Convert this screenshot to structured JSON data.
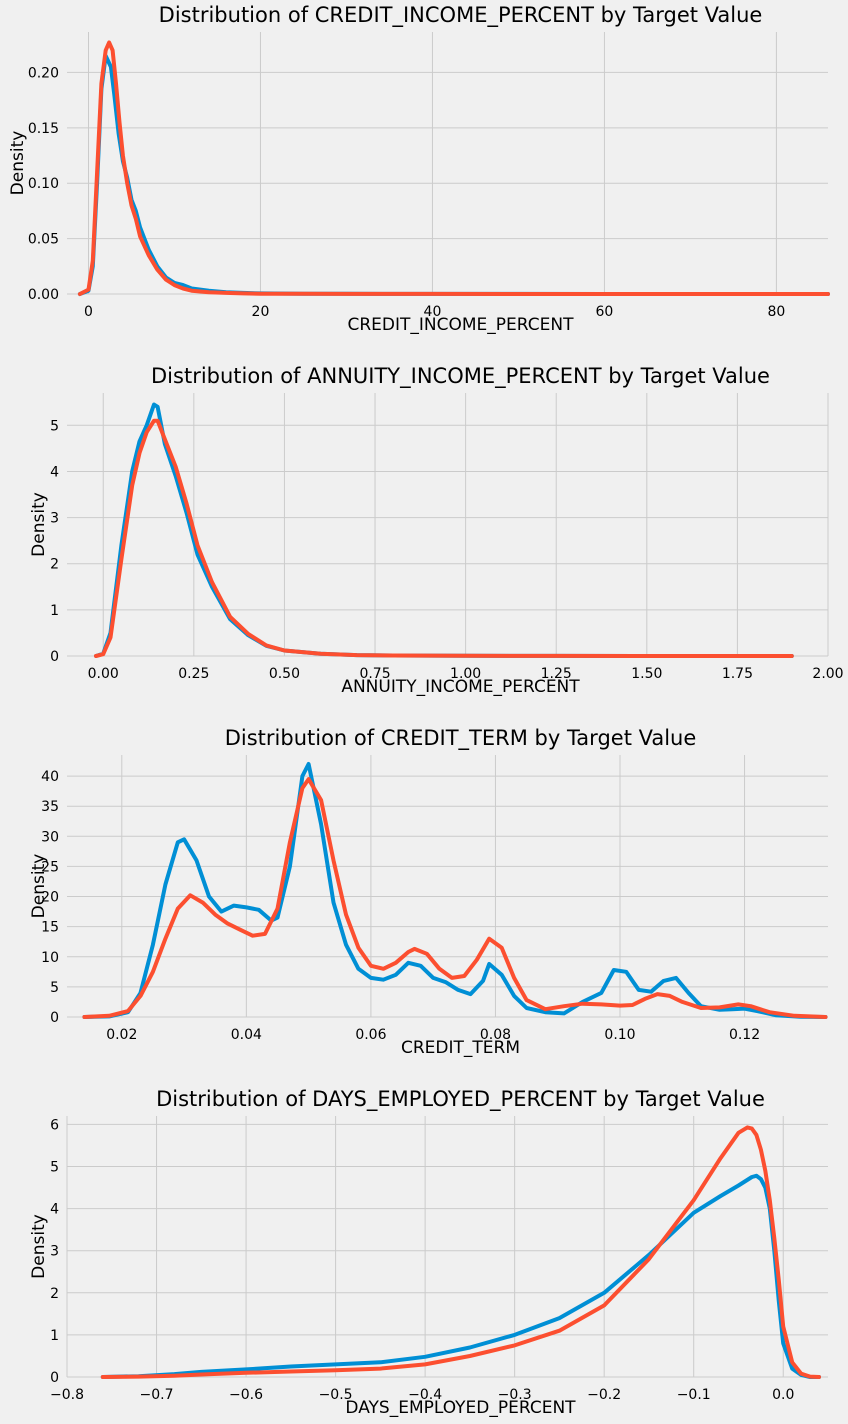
{
  "colors": {
    "background": "#f0f0f0",
    "grid": "#cbcbcb",
    "target_0": "#008fd5",
    "target_1": "#fc4f30"
  },
  "chart_data": [
    {
      "type": "line",
      "title": "Distribution of CREDIT_INCOME_PERCENT by Target Value",
      "xlabel": "CREDIT_INCOME_PERCENT",
      "ylabel": "Density",
      "xlim": [
        -2.5,
        86
      ],
      "ylim": [
        0,
        0.2365
      ],
      "xticks": [
        0,
        20,
        40,
        60,
        80
      ],
      "xtick_labels": [
        "0",
        "20",
        "40",
        "60",
        "80"
      ],
      "yticks": [
        0,
        0.05,
        0.1,
        0.15,
        0.2
      ],
      "ytick_labels": [
        "0.00",
        "0.05",
        "0.10",
        "0.15",
        "0.20"
      ],
      "grid": true,
      "series": [
        {
          "color": "#008fd5",
          "x": [
            -1.0,
            0.0,
            0.5,
            1.0,
            1.5,
            2.0,
            2.3,
            2.6,
            3.0,
            3.5,
            4.0,
            4.5,
            5.0,
            5.5,
            6.0,
            7.0,
            8.0,
            9.0,
            10.0,
            11.0,
            12.0,
            14.0,
            16.0,
            18.0,
            20.0,
            25.0,
            30.0,
            40.0,
            50.0,
            60.0,
            70.0,
            80.0,
            86.0
          ],
          "values": [
            0.0,
            0.003,
            0.025,
            0.1,
            0.185,
            0.215,
            0.21,
            0.205,
            0.18,
            0.145,
            0.12,
            0.105,
            0.085,
            0.075,
            0.06,
            0.04,
            0.025,
            0.015,
            0.01,
            0.008,
            0.005,
            0.003,
            0.0015,
            0.001,
            0.0005,
            0.0003,
            0.0002,
            0.0001,
            0.0001,
            0.0,
            0.0,
            0.0,
            0.0
          ]
        },
        {
          "color": "#fc4f30",
          "x": [
            -1.0,
            0.0,
            0.5,
            1.0,
            1.5,
            2.0,
            2.4,
            2.8,
            3.2,
            3.6,
            4.0,
            4.5,
            5.0,
            5.5,
            6.0,
            7.0,
            8.0,
            9.0,
            10.0,
            11.0,
            12.0,
            14.0,
            16.0,
            18.0,
            20.0,
            25.0,
            30.0,
            40.0,
            50.0,
            60.0,
            70.0,
            80.0,
            86.0
          ],
          "values": [
            0.0,
            0.004,
            0.03,
            0.11,
            0.19,
            0.22,
            0.227,
            0.22,
            0.19,
            0.155,
            0.125,
            0.1,
            0.08,
            0.068,
            0.052,
            0.035,
            0.022,
            0.013,
            0.008,
            0.005,
            0.003,
            0.0015,
            0.001,
            0.0005,
            0.0003,
            0.0002,
            0.0001,
            0.0001,
            0.0,
            0.0,
            0.0,
            0.0,
            0.0
          ]
        }
      ]
    },
    {
      "type": "line",
      "title": "Distribution of ANNUITY_INCOME_PERCENT by Target Value",
      "xlabel": "ANNUITY_INCOME_PERCENT",
      "ylabel": "Density",
      "xlim": [
        -0.1,
        2.0
      ],
      "ylim": [
        0,
        5.7
      ],
      "xticks": [
        0,
        0.25,
        0.5,
        0.75,
        1.0,
        1.25,
        1.5,
        1.75,
        2.0
      ],
      "xtick_labels": [
        "0.00",
        "0.25",
        "0.50",
        "0.75",
        "1.00",
        "1.25",
        "1.50",
        "1.75",
        "2.00"
      ],
      "yticks": [
        0,
        1,
        2,
        3,
        4,
        5
      ],
      "ytick_labels": [
        "0",
        "1",
        "2",
        "3",
        "4",
        "5"
      ],
      "grid": true,
      "series": [
        {
          "color": "#008fd5",
          "x": [
            -0.02,
            0.0,
            0.02,
            0.05,
            0.08,
            0.1,
            0.12,
            0.14,
            0.15,
            0.17,
            0.2,
            0.23,
            0.26,
            0.3,
            0.35,
            0.4,
            0.45,
            0.5,
            0.6,
            0.7,
            0.8,
            1.0,
            1.25,
            1.5,
            1.75,
            1.9
          ],
          "values": [
            0.0,
            0.05,
            0.5,
            2.4,
            4.0,
            4.65,
            5.0,
            5.45,
            5.4,
            4.6,
            3.9,
            3.1,
            2.2,
            1.5,
            0.8,
            0.45,
            0.22,
            0.12,
            0.05,
            0.02,
            0.01,
            0.005,
            0.002,
            0.0,
            0.0,
            0.0
          ]
        },
        {
          "color": "#fc4f30",
          "x": [
            -0.02,
            0.0,
            0.02,
            0.05,
            0.08,
            0.1,
            0.12,
            0.14,
            0.15,
            0.17,
            0.2,
            0.23,
            0.26,
            0.3,
            0.35,
            0.4,
            0.45,
            0.5,
            0.6,
            0.7,
            0.8,
            1.0,
            1.25,
            1.5,
            1.75,
            1.9
          ],
          "values": [
            0.0,
            0.04,
            0.4,
            2.1,
            3.7,
            4.4,
            4.85,
            5.1,
            5.1,
            4.7,
            4.1,
            3.3,
            2.4,
            1.6,
            0.85,
            0.48,
            0.23,
            0.12,
            0.05,
            0.02,
            0.01,
            0.005,
            0.002,
            0.0,
            0.0,
            0.0
          ]
        }
      ]
    },
    {
      "type": "line",
      "title": "Distribution of CREDIT_TERM by Target Value",
      "xlabel": "CREDIT_TERM",
      "ylabel": "Density",
      "xlim": [
        0.0112,
        0.1334
      ],
      "ylim": [
        0,
        43.5
      ],
      "xticks": [
        0.02,
        0.04,
        0.06,
        0.08,
        0.1,
        0.12
      ],
      "xtick_labels": [
        "0.02",
        "0.04",
        "0.06",
        "0.08",
        "0.10",
        "0.12"
      ],
      "yticks": [
        0,
        5,
        10,
        15,
        20,
        25,
        30,
        35,
        40
      ],
      "ytick_labels": [
        "0",
        "5",
        "10",
        "15",
        "20",
        "25",
        "30",
        "35",
        "40"
      ],
      "grid": true,
      "series": [
        {
          "color": "#008fd5",
          "x": [
            0.014,
            0.018,
            0.021,
            0.023,
            0.025,
            0.027,
            0.029,
            0.03,
            0.032,
            0.034,
            0.036,
            0.038,
            0.04,
            0.042,
            0.044,
            0.045,
            0.047,
            0.049,
            0.05,
            0.052,
            0.054,
            0.056,
            0.058,
            0.06,
            0.062,
            0.064,
            0.066,
            0.068,
            0.07,
            0.072,
            0.074,
            0.076,
            0.078,
            0.079,
            0.081,
            0.083,
            0.085,
            0.088,
            0.091,
            0.094,
            0.097,
            0.099,
            0.101,
            0.103,
            0.105,
            0.107,
            0.109,
            0.111,
            0.113,
            0.116,
            0.118,
            0.12,
            0.122,
            0.125,
            0.129,
            0.133
          ],
          "values": [
            0.0,
            0.1,
            0.8,
            4.0,
            12.0,
            22.0,
            29.0,
            29.5,
            26.0,
            20.0,
            17.5,
            18.5,
            18.2,
            17.8,
            16.0,
            16.5,
            25.0,
            40.0,
            42.0,
            32.0,
            19.0,
            12.0,
            8.0,
            6.5,
            6.2,
            7.0,
            9.0,
            8.5,
            6.5,
            5.8,
            4.5,
            3.8,
            6.0,
            8.8,
            7.0,
            3.5,
            1.5,
            0.8,
            0.6,
            2.5,
            4.0,
            7.8,
            7.5,
            4.5,
            4.2,
            6.0,
            6.5,
            4.0,
            1.8,
            1.2,
            1.3,
            1.4,
            1.0,
            0.3,
            0.05,
            0.0
          ]
        },
        {
          "color": "#fc4f30",
          "x": [
            0.014,
            0.018,
            0.021,
            0.023,
            0.025,
            0.027,
            0.029,
            0.031,
            0.033,
            0.035,
            0.037,
            0.039,
            0.041,
            0.043,
            0.045,
            0.047,
            0.049,
            0.05,
            0.052,
            0.054,
            0.056,
            0.058,
            0.06,
            0.062,
            0.064,
            0.066,
            0.067,
            0.069,
            0.071,
            0.073,
            0.075,
            0.077,
            0.079,
            0.081,
            0.083,
            0.085,
            0.088,
            0.091,
            0.094,
            0.097,
            0.1,
            0.102,
            0.104,
            0.106,
            0.108,
            0.11,
            0.113,
            0.116,
            0.119,
            0.121,
            0.124,
            0.128,
            0.133
          ],
          "values": [
            0.0,
            0.2,
            1.0,
            3.5,
            7.5,
            13.0,
            18.0,
            20.2,
            19.0,
            17.0,
            15.5,
            14.5,
            13.5,
            13.8,
            18.0,
            29.0,
            38.0,
            39.5,
            36.0,
            26.0,
            17.0,
            11.5,
            8.5,
            8.0,
            9.0,
            10.8,
            11.3,
            10.5,
            8.0,
            6.5,
            6.8,
            9.5,
            13.0,
            11.5,
            6.5,
            2.8,
            1.3,
            1.8,
            2.2,
            2.1,
            1.9,
            2.0,
            3.0,
            3.8,
            3.5,
            2.5,
            1.5,
            1.6,
            2.1,
            1.8,
            0.8,
            0.2,
            0.0
          ]
        }
      ]
    },
    {
      "type": "line",
      "title": "Distribution of DAYS_EMPLOYED_PERCENT by Target Value",
      "xlabel": "DAYS_EMPLOYED_PERCENT",
      "ylabel": "Density",
      "xlim": [
        -0.8,
        0.05
      ],
      "ylim": [
        0,
        6.2
      ],
      "xticks": [
        -0.8,
        -0.7,
        -0.6,
        -0.5,
        -0.4,
        -0.3,
        -0.2,
        -0.1,
        0.0
      ],
      "xtick_labels": [
        "−0.8",
        "−0.7",
        "−0.6",
        "−0.5",
        "−0.4",
        "−0.3",
        "−0.2",
        "−0.1",
        "0.0"
      ],
      "yticks": [
        0,
        1,
        2,
        3,
        4,
        5,
        6
      ],
      "ytick_labels": [
        "0",
        "1",
        "2",
        "3",
        "4",
        "5",
        "6"
      ],
      "grid": true,
      "series": [
        {
          "color": "#008fd5",
          "x": [
            -0.76,
            -0.72,
            -0.68,
            -0.65,
            -0.6,
            -0.55,
            -0.5,
            -0.45,
            -0.4,
            -0.35,
            -0.3,
            -0.25,
            -0.2,
            -0.15,
            -0.1,
            -0.07,
            -0.05,
            -0.035,
            -0.03,
            -0.025,
            -0.02,
            -0.015,
            -0.01,
            -0.005,
            0.0,
            0.01,
            0.02,
            0.03,
            0.04
          ],
          "values": [
            0.0,
            0.02,
            0.07,
            0.12,
            0.18,
            0.25,
            0.3,
            0.35,
            0.48,
            0.7,
            1.0,
            1.4,
            2.0,
            2.9,
            3.9,
            4.3,
            4.55,
            4.75,
            4.78,
            4.7,
            4.5,
            4.0,
            3.0,
            1.8,
            0.8,
            0.2,
            0.05,
            0.0,
            0.0
          ]
        },
        {
          "color": "#fc4f30",
          "x": [
            -0.76,
            -0.72,
            -0.68,
            -0.65,
            -0.6,
            -0.55,
            -0.5,
            -0.45,
            -0.4,
            -0.35,
            -0.3,
            -0.25,
            -0.2,
            -0.15,
            -0.1,
            -0.07,
            -0.05,
            -0.04,
            -0.035,
            -0.03,
            -0.025,
            -0.02,
            -0.015,
            -0.01,
            -0.005,
            0.0,
            0.01,
            0.02,
            0.03,
            0.04
          ],
          "values": [
            0.0,
            0.01,
            0.03,
            0.06,
            0.1,
            0.13,
            0.16,
            0.2,
            0.3,
            0.5,
            0.75,
            1.1,
            1.7,
            2.8,
            4.2,
            5.2,
            5.8,
            5.93,
            5.9,
            5.75,
            5.4,
            4.9,
            4.2,
            3.3,
            2.3,
            1.2,
            0.35,
            0.08,
            0.01,
            0.0
          ]
        }
      ]
    }
  ]
}
